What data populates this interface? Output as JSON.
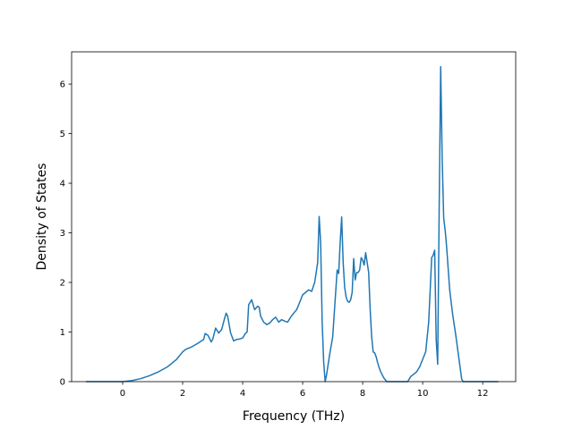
{
  "chart_data": {
    "type": "line",
    "title": "",
    "xlabel": "Frequency (THz)",
    "ylabel": "Density of States",
    "xlim": [
      -1.7,
      13.1
    ],
    "ylim": [
      0,
      6.65
    ],
    "xticks": [
      0,
      2,
      4,
      6,
      8,
      10,
      12
    ],
    "xtick_labels": [
      "0",
      "2",
      "4",
      "6",
      "8",
      "10",
      "12"
    ],
    "yticks": [
      0,
      1,
      2,
      3,
      4,
      5,
      6
    ],
    "ytick_labels": [
      "0",
      "1",
      "2",
      "3",
      "4",
      "5",
      "6"
    ],
    "grid": false,
    "legend": "none",
    "series": [
      {
        "color": "#1f77b4",
        "x": [
          -1.2,
          -0.5,
          0.0,
          0.3,
          0.6,
          0.9,
          1.2,
          1.5,
          1.8,
          2.0,
          2.1,
          2.3,
          2.5,
          2.7,
          2.75,
          2.85,
          2.95,
          3.0,
          3.1,
          3.2,
          3.3,
          3.4,
          3.45,
          3.5,
          3.6,
          3.7,
          3.8,
          3.9,
          4.0,
          4.1,
          4.15,
          4.2,
          4.3,
          4.4,
          4.5,
          4.55,
          4.6,
          4.7,
          4.8,
          4.9,
          5.0,
          5.1,
          5.2,
          5.3,
          5.4,
          5.5,
          5.6,
          5.7,
          5.8,
          5.9,
          6.0,
          6.1,
          6.2,
          6.3,
          6.4,
          6.5,
          6.55,
          6.6,
          6.65,
          6.7,
          6.75,
          6.8,
          6.85,
          6.9,
          7.0,
          7.1,
          7.15,
          7.2,
          7.25,
          7.3,
          7.35,
          7.4,
          7.45,
          7.5,
          7.55,
          7.6,
          7.65,
          7.7,
          7.75,
          7.8,
          7.85,
          7.9,
          7.95,
          8.0,
          8.05,
          8.1,
          8.15,
          8.2,
          8.25,
          8.3,
          8.35,
          8.4,
          8.45,
          8.5,
          8.55,
          8.6,
          8.7,
          8.8,
          8.9,
          9.0,
          9.5,
          9.6,
          9.8,
          9.9,
          10.0,
          10.1,
          10.2,
          10.3,
          10.35,
          10.4,
          10.45,
          10.5,
          10.55,
          10.6,
          10.65,
          10.7,
          10.75,
          10.8,
          10.9,
          11.0,
          11.1,
          11.2,
          11.3,
          11.35,
          11.5,
          12.0,
          12.5
        ],
        "y": [
          0.0,
          0.0,
          0.0,
          0.02,
          0.06,
          0.12,
          0.2,
          0.3,
          0.45,
          0.6,
          0.65,
          0.7,
          0.77,
          0.85,
          0.97,
          0.93,
          0.8,
          0.85,
          1.08,
          0.98,
          1.05,
          1.28,
          1.38,
          1.32,
          0.98,
          0.82,
          0.85,
          0.86,
          0.88,
          0.98,
          1.0,
          1.55,
          1.65,
          1.45,
          1.52,
          1.5,
          1.32,
          1.2,
          1.15,
          1.18,
          1.25,
          1.3,
          1.2,
          1.25,
          1.22,
          1.2,
          1.3,
          1.38,
          1.45,
          1.6,
          1.75,
          1.8,
          1.85,
          1.82,
          2.0,
          2.4,
          3.33,
          2.8,
          1.2,
          0.4,
          0.0,
          0.15,
          0.35,
          0.55,
          0.9,
          1.8,
          2.25,
          2.18,
          2.8,
          3.32,
          2.4,
          1.9,
          1.7,
          1.62,
          1.6,
          1.65,
          1.8,
          2.48,
          2.05,
          2.2,
          2.2,
          2.25,
          2.5,
          2.45,
          2.35,
          2.6,
          2.4,
          2.2,
          1.45,
          0.9,
          0.6,
          0.58,
          0.5,
          0.38,
          0.28,
          0.2,
          0.08,
          0.0,
          0.0,
          0.0,
          0.0,
          0.1,
          0.2,
          0.3,
          0.45,
          0.6,
          1.2,
          2.5,
          2.55,
          2.65,
          0.85,
          0.35,
          3.5,
          6.35,
          4.5,
          3.3,
          3.05,
          2.7,
          1.85,
          1.35,
          0.95,
          0.5,
          0.05,
          0.0,
          0.0,
          0.0,
          0.0
        ]
      }
    ]
  }
}
